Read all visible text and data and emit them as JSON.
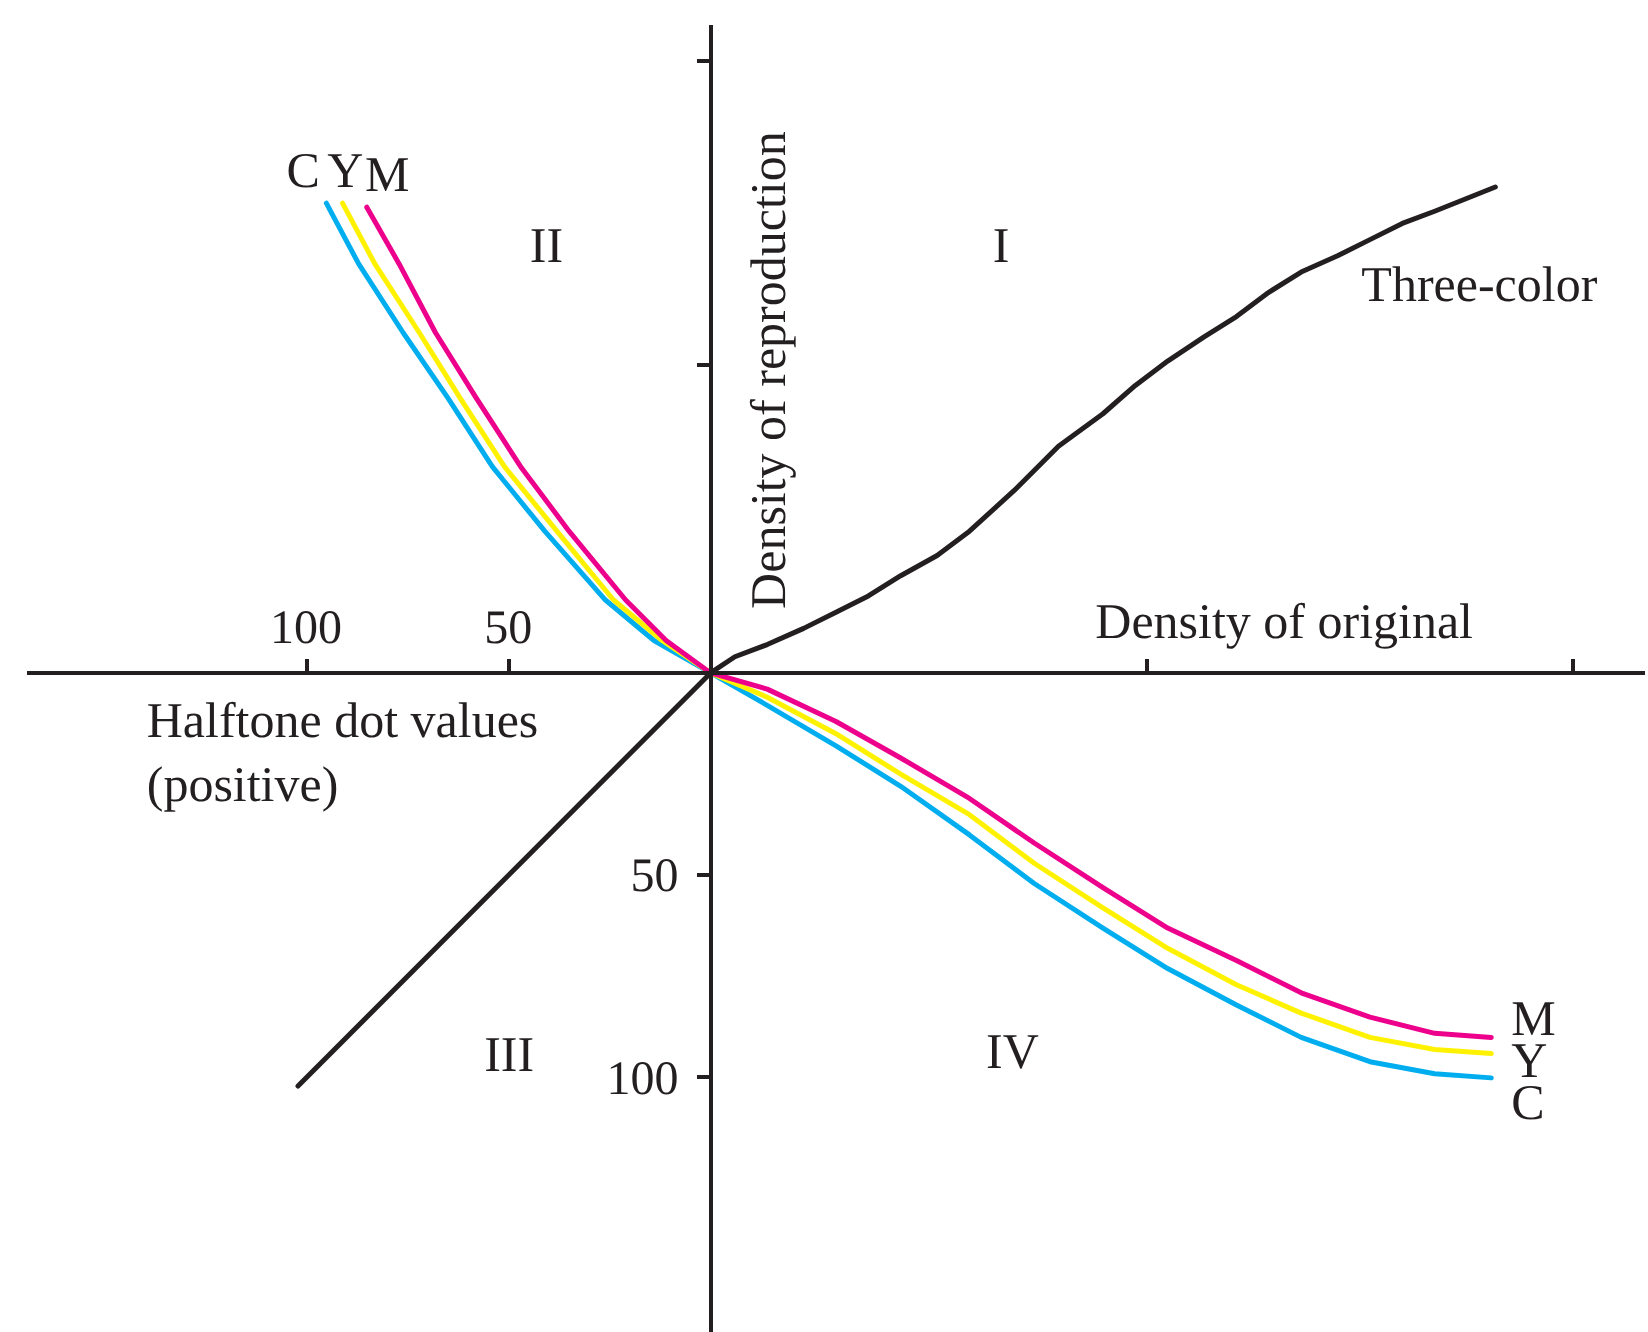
{
  "chart_data": {
    "type": "line",
    "xlabel": "Density of original",
    "ylabel": "Density of reproduction",
    "xlim": [
      -169,
      231
    ],
    "ylim": [
      -163,
      160
    ],
    "xticks": [
      {
        "value": -100,
        "label": "100"
      },
      {
        "value": -50,
        "label": "50"
      },
      {
        "value": 108,
        "label": null
      },
      {
        "value": 213,
        "label": null
      }
    ],
    "yticks": [
      {
        "value": -100,
        "label": "100"
      },
      {
        "value": -50,
        "label": "50"
      },
      {
        "value": 76,
        "label": null
      },
      {
        "value": 151,
        "label": null
      }
    ],
    "series": [
      {
        "name": "Three-color",
        "color": "#231f20",
        "x": [
          -102,
          0,
          6,
          14,
          23,
          31,
          39,
          47,
          56,
          64,
          75,
          86,
          97,
          105,
          113,
          122,
          130,
          138,
          146,
          155,
          163,
          171,
          179,
          194
        ],
        "values": [
          -102,
          0,
          4,
          7,
          11,
          15,
          19,
          24,
          29,
          35,
          45,
          56,
          64,
          71,
          77,
          83,
          88,
          94,
          99,
          103,
          107,
          111,
          114,
          120
        ]
      },
      {
        "name": "C",
        "color": "#00aeef",
        "x": [
          -95,
          -87,
          -76,
          -65,
          -54,
          -41,
          -26,
          -14,
          0,
          14,
          31,
          47,
          64,
          80,
          97,
          113,
          130,
          146,
          163,
          179,
          193
        ],
        "values": [
          116,
          101,
          84,
          68,
          51,
          35,
          18,
          8,
          0,
          -8,
          -18,
          -28,
          -40,
          -52,
          -63,
          -73,
          -82,
          -90,
          -96,
          -99,
          -100
        ]
      },
      {
        "name": "Y",
        "color": "#fff200",
        "x": [
          -91,
          -83,
          -72,
          -62,
          -51,
          -38,
          -24,
          -12,
          0,
          14,
          31,
          47,
          64,
          80,
          97,
          113,
          130,
          146,
          163,
          179,
          193
        ],
        "values": [
          116,
          101,
          84,
          68,
          51,
          35,
          18,
          8,
          0,
          -6,
          -15,
          -25,
          -35,
          -47,
          -58,
          -68,
          -77,
          -84,
          -90,
          -93,
          -94
        ]
      },
      {
        "name": "M",
        "color": "#ec008c",
        "x": [
          -85,
          -77,
          -68,
          -58,
          -47,
          -35,
          -21,
          -11,
          0,
          14,
          31,
          47,
          64,
          80,
          97,
          113,
          130,
          146,
          163,
          179,
          193
        ],
        "values": [
          115,
          101,
          84,
          68,
          51,
          35,
          18,
          8,
          0,
          -4,
          -12,
          -21,
          -31,
          -42,
          -53,
          -63,
          -71,
          -79,
          -85,
          -89,
          -90
        ]
      }
    ],
    "annotations": [
      "Halftone dot values\n(positive)",
      "I",
      "II",
      "III",
      "IV"
    ]
  }
}
